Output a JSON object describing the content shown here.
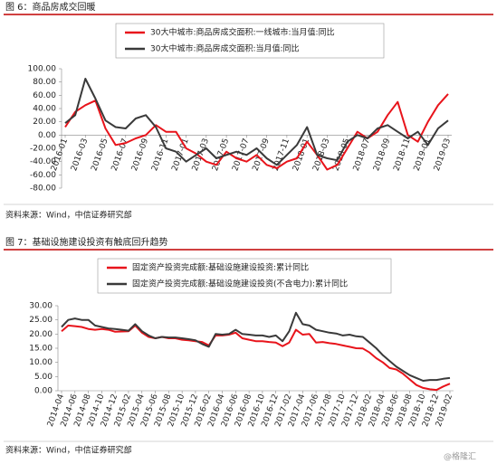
{
  "chart_data": [
    {
      "type": "line",
      "title": "图 6：商品房成交回暖",
      "source": "资料来源：Wind，中信证券研究部",
      "categories": [
        "2016-01",
        null,
        "2016-03",
        null,
        "2016-05",
        null,
        "2016-07",
        null,
        "2016-09",
        null,
        "2016-11",
        null,
        "2017-01",
        null,
        "2017-03",
        null,
        "2017-05",
        null,
        "2017-07",
        null,
        "2017-09",
        null,
        "2017-11",
        null,
        "2018-01",
        null,
        "2018-03",
        null,
        "2018-05",
        null,
        "2018-07",
        null,
        "2018-09",
        null,
        "2018-11",
        null,
        "2019-01",
        null,
        "2019-03"
      ],
      "series": [
        {
          "name": "30大中城市:商品房成交面积:一线城市:当月值:同比",
          "color": "#e8141b",
          "values": [
            12,
            35,
            45,
            52,
            10,
            -15,
            -12,
            -5,
            0,
            15,
            5,
            5,
            -20,
            -28,
            -40,
            -45,
            -25,
            -35,
            -40,
            -30,
            -45,
            -50,
            -40,
            -35,
            -10,
            -30,
            -52,
            -45,
            -20,
            5,
            -5,
            5,
            30,
            50,
            0,
            -10,
            20,
            45,
            62
          ]
        },
        {
          "name": "30大中城市:商品房成交面积:当月值:同比",
          "color": "#3a3a3a",
          "values": [
            18,
            30,
            85,
            55,
            22,
            12,
            10,
            25,
            30,
            12,
            -20,
            -25,
            -40,
            -30,
            -20,
            -35,
            -30,
            -25,
            -30,
            -20,
            -35,
            -45,
            -30,
            -15,
            12,
            -30,
            -35,
            -38,
            -10,
            0,
            -5,
            10,
            15,
            5,
            -5,
            5,
            -15,
            10,
            22
          ]
        }
      ],
      "ylim": [
        -80,
        100
      ],
      "yticks": [
        {
          "value": -80,
          "label": "-80.00"
        },
        {
          "value": -60,
          "label": "-60.00"
        },
        {
          "value": -40,
          "label": "-40.00"
        },
        {
          "value": -20,
          "label": "-20.00"
        },
        {
          "value": 0,
          "label": "0.00"
        },
        {
          "value": 20,
          "label": "20.00"
        },
        {
          "value": 40,
          "label": "40.00"
        },
        {
          "value": 60,
          "label": "60.00"
        },
        {
          "value": 80,
          "label": "80.00"
        },
        {
          "value": 100,
          "label": "100.00"
        }
      ],
      "grid": false
    },
    {
      "type": "line",
      "title": "图 7：基础设施建设投资有触底回升趋势",
      "source": "资料来源：Wind，中信证券研究部",
      "categories": [
        "2014-04",
        null,
        "2014-06",
        null,
        "2014-08",
        null,
        "2014-10",
        null,
        "2014-12",
        null,
        "2015-02",
        null,
        "2015-04",
        null,
        "2015-06",
        null,
        "2015-08",
        null,
        "2015-10",
        null,
        "2015-12",
        null,
        "2016-02",
        null,
        "2016-04",
        null,
        "2016-06",
        null,
        "2016-08",
        null,
        "2016-10",
        null,
        "2016-12",
        null,
        "2017-02",
        null,
        "2017-04",
        null,
        "2017-06",
        null,
        "2017-08",
        null,
        "2017-10",
        null,
        "2017-12",
        null,
        "2018-02",
        null,
        "2018-04",
        null,
        "2018-06",
        null,
        "2018-08",
        null,
        "2018-10",
        null,
        "2018-12",
        null,
        "2019-02"
      ],
      "series": [
        {
          "name": "固定资产投资完成额:基础设施建设投资:累计同比",
          "color": "#e8141b",
          "values": [
            21.0,
            23.0,
            22.8,
            22.5,
            21.8,
            21.5,
            21.8,
            21.5,
            20.8,
            20.9,
            21.0,
            23.0,
            20.5,
            19.0,
            18.5,
            19.0,
            18.5,
            18.5,
            18.0,
            17.8,
            17.5,
            17.2,
            16.0,
            19.5,
            19.5,
            19.8,
            20.5,
            18.5,
            18.0,
            17.5,
            17.5,
            17.2,
            17.0,
            15.7,
            17.0,
            21.5,
            19.8,
            20.0,
            17.0,
            17.2,
            16.8,
            16.5,
            16.0,
            15.5,
            15.0,
            14.9,
            13.5,
            11.5,
            10.0,
            8.0,
            7.5,
            6.0,
            4.0,
            2.0,
            1.0,
            0.5,
            0.3,
            1.5,
            2.5
          ]
        },
        {
          "name": "固定资产投资完成额:基础设施建设投资(不含电力):累计同比",
          "color": "#3a3a3a",
          "values": [
            22.5,
            25.0,
            25.5,
            25.0,
            25.0,
            23.0,
            22.5,
            22.0,
            21.8,
            21.5,
            21.2,
            23.5,
            21.0,
            19.5,
            18.5,
            19.0,
            18.8,
            18.8,
            18.5,
            18.2,
            17.8,
            16.5,
            15.5,
            20.0,
            19.8,
            20.0,
            21.5,
            20.0,
            19.8,
            19.5,
            19.5,
            19.0,
            19.5,
            17.5,
            21.0,
            27.5,
            23.5,
            23.0,
            21.5,
            21.0,
            20.5,
            20.2,
            19.5,
            19.8,
            19.2,
            19.0,
            17.0,
            15.0,
            12.5,
            10.5,
            8.5,
            7.0,
            5.5,
            4.5,
            3.5,
            3.8,
            3.8,
            4.2,
            4.5
          ]
        }
      ],
      "ylim": [
        0,
        30
      ],
      "yticks": [
        {
          "value": 0,
          "label": "0.00"
        },
        {
          "value": 5,
          "label": "5.00"
        },
        {
          "value": 10,
          "label": "10.00"
        },
        {
          "value": 15,
          "label": "15.00"
        },
        {
          "value": 20,
          "label": "20.00"
        },
        {
          "value": 25,
          "label": "25.00"
        },
        {
          "value": 30,
          "label": "30.00"
        }
      ],
      "grid": false
    }
  ],
  "watermark": "@格隆汇"
}
